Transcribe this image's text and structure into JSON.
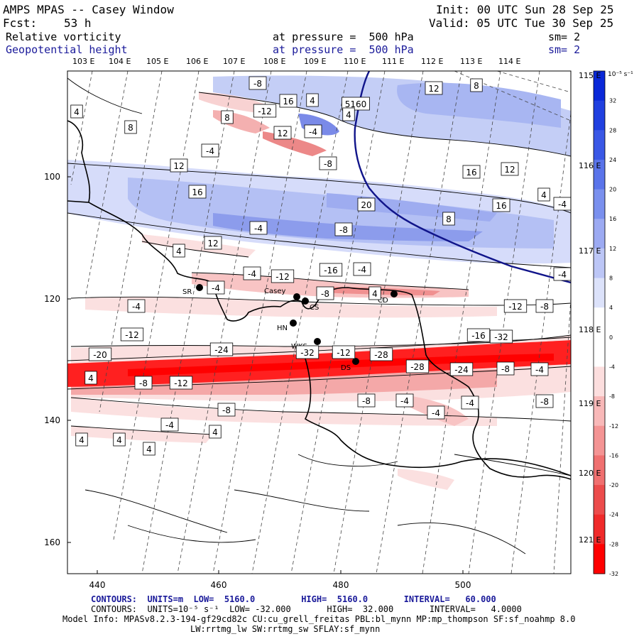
{
  "header": {
    "title": "AMPS MPAS -- Casey Window",
    "init": "Init: 00 UTC Sun 28 Sep 25",
    "fcst_label": "Fcst:",
    "fcst_value": "53 h",
    "valid": "Valid: 05 UTC Tue 30 Sep 25",
    "field1_name": "Relative vorticity",
    "field1_level": "at pressure =  500 hPa",
    "field1_sm": "sm= 2",
    "field2_name": "Geopotential height",
    "field2_level": "at pressure =  500 hPa",
    "field2_sm": "sm= 2"
  },
  "longitude_labels_top": [
    "103 E",
    "104 E",
    "105 E",
    "106 E",
    "107 E",
    "108 E",
    "109 E",
    "110 E",
    "111 E",
    "112 E",
    "113 E",
    "114 E"
  ],
  "longitude_labels_right": [
    "115 E",
    "116 E",
    "117 E",
    "118 E",
    "119 E",
    "120 E",
    "121 E"
  ],
  "y_axis_ticks": [
    "100",
    "120",
    "140",
    "160"
  ],
  "x_axis_ticks": [
    "440",
    "460",
    "480",
    "500"
  ],
  "colorbar": {
    "units": "10⁻⁵ s⁻¹",
    "labels": [
      "32",
      "28",
      "24",
      "20",
      "16",
      "12",
      "8",
      "4",
      "0",
      "-4",
      "-8",
      "-12",
      "-16",
      "-20",
      "-24",
      "-28",
      "-32"
    ],
    "colors": [
      "#0a28d8",
      "#2040e0",
      "#3a58e6",
      "#5a74ea",
      "#7a90ee",
      "#9caaf2",
      "#bcc6f6",
      "#dce2fa",
      "#ffffff",
      "#ffffff",
      "#fcdede",
      "#f8b8b8",
      "#f49494",
      "#f07070",
      "#ec4c4c",
      "#f02a2a",
      "#ff0000"
    ]
  },
  "height_contour_label": "5160",
  "stations": [
    {
      "name": "SR"
    },
    {
      "name": "Casey"
    },
    {
      "name": "CS"
    },
    {
      "name": "HN"
    },
    {
      "name": "CD"
    },
    {
      "name": "WKS"
    },
    {
      "name": "DS"
    }
  ],
  "contour_labels": [
    "4",
    "-8",
    "8",
    "16",
    "4",
    "5160",
    "12",
    "8",
    "-12",
    "12",
    "-4",
    "4",
    "8",
    "-4",
    "-8",
    "12",
    "16",
    "12",
    "16",
    "20",
    "16",
    "4",
    "-4",
    "-4",
    "-8",
    "8",
    "12",
    "4",
    "-4",
    "-12",
    "-16",
    "-4",
    "-4",
    "-8",
    "4",
    "-4",
    "-4",
    "-12",
    "-8",
    "-12",
    "-16",
    "-32",
    "-24",
    "-20",
    "-32",
    "-12",
    "-28",
    "-28",
    "-24",
    "-8",
    "-4",
    "4",
    "-8",
    "-12",
    "-8",
    "-4",
    "-8",
    "-4",
    "-4",
    "-8",
    "4",
    "-4",
    "4",
    "4",
    "4"
  ],
  "footer": {
    "line1": "CONTOURS:  UNITS=m  LOW=  5160.0         HIGH=  5160.0       INTERVAL=   60.000",
    "line2": "CONTOURS:  UNITS=10⁻⁵ s⁻¹  LOW= -32.000       HIGH=  32.000       INTERVAL=   4.0000",
    "line3": "Model Info: MPASv8.2.3-194-gf29cd82c CU:cu_grell_freitas PBL:bl_mynn MP:mp_thompson SF:sf_noahmp 8.0",
    "line4": "LW:rrtmg_lw SW:rrtmg_sw SFLAY:sf_mynn"
  }
}
